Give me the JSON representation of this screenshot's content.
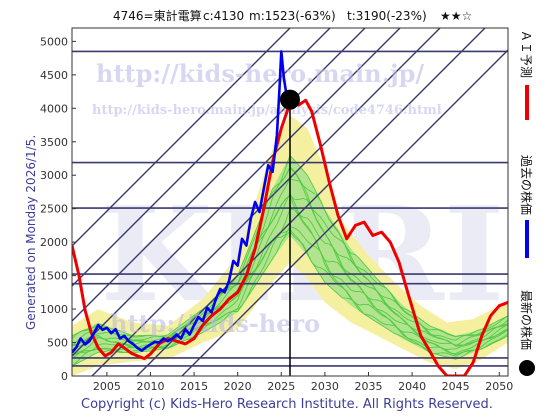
{
  "header": {
    "code_name": "4746=東計電算",
    "current": "c:4130",
    "min": "m:1523(-63%)",
    "target": "t:3190(-23%)",
    "stars": "★★☆"
  },
  "side_label": "Generated on Monday 2026/1/5.",
  "footer": "Copyright (c) Kids-Hero Research Institute. All Rights Reserved.",
  "watermarks": {
    "url1": "http://kids-hero.main.jp/",
    "url2": "http://kids-hero.main.jp/analysis/code4746.html",
    "url3": "http://kids-hero",
    "big": "KHRI"
  },
  "legend": {
    "forecast": "ＡＩ予測",
    "past": "過去の株価",
    "latest": "最新の株価"
  },
  "colors": {
    "past": "#0000ee",
    "forecast": "#ee0000",
    "latest": "#000000",
    "envelope_green": "#55cc44",
    "envelope_yellow": "#f5f0a0",
    "lines": "#3a3a70"
  },
  "chart_data": {
    "type": "line",
    "x_range": [
      2001,
      2051
    ],
    "y_range": [
      0,
      5200
    ],
    "x_ticks": [
      2005,
      2010,
      2015,
      2020,
      2025,
      2030,
      2035,
      2040,
      2045,
      2050
    ],
    "y_ticks": [
      0,
      500,
      1000,
      1500,
      2000,
      2500,
      3000,
      3500,
      4000,
      4500,
      5000
    ],
    "grid": false,
    "latest_point": {
      "year": 2026.0,
      "value": 4130
    },
    "horizontal_levels": [
      4850,
      3190,
      2510,
      1523,
      1380,
      270,
      150
    ],
    "past_series": [
      [
        2001.0,
        350
      ],
      [
        2001.5,
        430
      ],
      [
        2002.0,
        560
      ],
      [
        2002.5,
        470
      ],
      [
        2003.0,
        520
      ],
      [
        2003.5,
        640
      ],
      [
        2004.0,
        760
      ],
      [
        2004.5,
        690
      ],
      [
        2005.0,
        720
      ],
      [
        2005.5,
        640
      ],
      [
        2006.0,
        700
      ],
      [
        2006.5,
        560
      ],
      [
        2007.0,
        600
      ],
      [
        2007.5,
        520
      ],
      [
        2008.0,
        480
      ],
      [
        2008.5,
        420
      ],
      [
        2009.0,
        380
      ],
      [
        2009.5,
        430
      ],
      [
        2010.0,
        470
      ],
      [
        2010.5,
        510
      ],
      [
        2011.0,
        500
      ],
      [
        2011.5,
        560
      ],
      [
        2012.0,
        520
      ],
      [
        2012.5,
        560
      ],
      [
        2013.0,
        620
      ],
      [
        2013.5,
        560
      ],
      [
        2014.0,
        700
      ],
      [
        2014.5,
        620
      ],
      [
        2015.0,
        760
      ],
      [
        2015.5,
        880
      ],
      [
        2016.0,
        820
      ],
      [
        2016.5,
        1020
      ],
      [
        2017.0,
        950
      ],
      [
        2017.5,
        1150
      ],
      [
        2018.0,
        1300
      ],
      [
        2018.5,
        1250
      ],
      [
        2019.0,
        1420
      ],
      [
        2019.5,
        1720
      ],
      [
        2020.0,
        1650
      ],
      [
        2020.5,
        2050
      ],
      [
        2021.0,
        1950
      ],
      [
        2021.5,
        2350
      ],
      [
        2022.0,
        2600
      ],
      [
        2022.5,
        2450
      ],
      [
        2023.0,
        2800
      ],
      [
        2023.5,
        3150
      ],
      [
        2024.0,
        3050
      ],
      [
        2024.5,
        3600
      ],
      [
        2024.8,
        4300
      ],
      [
        2025.0,
        4850
      ],
      [
        2025.3,
        4450
      ],
      [
        2025.6,
        4200
      ],
      [
        2026.0,
        4130
      ]
    ],
    "forecast_series": [
      [
        2001.0,
        1950
      ],
      [
        2001.8,
        1500
      ],
      [
        2002.5,
        980
      ],
      [
        2003.2,
        650
      ],
      [
        2004.0,
        420
      ],
      [
        2004.8,
        300
      ],
      [
        2005.5,
        350
      ],
      [
        2006.3,
        480
      ],
      [
        2007.0,
        420
      ],
      [
        2007.8,
        340
      ],
      [
        2008.5,
        300
      ],
      [
        2009.3,
        260
      ],
      [
        2010.0,
        330
      ],
      [
        2011.0,
        480
      ],
      [
        2012.0,
        560
      ],
      [
        2013.0,
        520
      ],
      [
        2014.0,
        480
      ],
      [
        2015.0,
        560
      ],
      [
        2016.0,
        760
      ],
      [
        2017.0,
        900
      ],
      [
        2018.0,
        1000
      ],
      [
        2019.0,
        1150
      ],
      [
        2020.0,
        1250
      ],
      [
        2021.0,
        1500
      ],
      [
        2022.0,
        1900
      ],
      [
        2023.0,
        2500
      ],
      [
        2024.0,
        3200
      ],
      [
        2025.0,
        3700
      ],
      [
        2026.0,
        4080
      ],
      [
        2027.0,
        4050
      ],
      [
        2027.8,
        4120
      ],
      [
        2028.5,
        3950
      ],
      [
        2029.5,
        3450
      ],
      [
        2030.5,
        2900
      ],
      [
        2031.5,
        2400
      ],
      [
        2032.5,
        2050
      ],
      [
        2033.5,
        2250
      ],
      [
        2034.5,
        2300
      ],
      [
        2035.5,
        2100
      ],
      [
        2036.5,
        2150
      ],
      [
        2037.5,
        2000
      ],
      [
        2038.5,
        1700
      ],
      [
        2039.5,
        1250
      ],
      [
        2040.3,
        900
      ],
      [
        2041.0,
        600
      ],
      [
        2042.0,
        380
      ],
      [
        2043.0,
        150
      ],
      [
        2044.0,
        0
      ],
      [
        2045.0,
        0
      ],
      [
        2046.0,
        0
      ],
      [
        2047.0,
        200
      ],
      [
        2048.0,
        600
      ],
      [
        2049.0,
        900
      ],
      [
        2050.0,
        1050
      ],
      [
        2051.0,
        1100
      ]
    ],
    "envelope_outer_upper": [
      [
        2001,
        750
      ],
      [
        2004,
        1000
      ],
      [
        2008,
        800
      ],
      [
        2012,
        750
      ],
      [
        2016,
        1150
      ],
      [
        2020,
        1800
      ],
      [
        2024,
        3400
      ],
      [
        2026,
        3900
      ],
      [
        2028,
        3700
      ],
      [
        2030,
        3100
      ],
      [
        2032,
        2300
      ],
      [
        2035,
        1800
      ],
      [
        2038,
        1400
      ],
      [
        2041,
        1050
      ],
      [
        2044,
        800
      ],
      [
        2047,
        850
      ],
      [
        2050,
        1050
      ],
      [
        2051,
        1100
      ]
    ],
    "envelope_outer_lower": [
      [
        2001,
        0
      ],
      [
        2004,
        150
      ],
      [
        2008,
        220
      ],
      [
        2012,
        250
      ],
      [
        2016,
        500
      ],
      [
        2020,
        700
      ],
      [
        2024,
        1400
      ],
      [
        2026,
        1700
      ],
      [
        2028,
        1450
      ],
      [
        2030,
        1100
      ],
      [
        2033,
        800
      ],
      [
        2036,
        600
      ],
      [
        2039,
        400
      ],
      [
        2042,
        200
      ],
      [
        2045,
        100
      ],
      [
        2048,
        250
      ],
      [
        2051,
        500
      ]
    ],
    "envelope_inner_upper": [
      [
        2001,
        600
      ],
      [
        2004,
        800
      ],
      [
        2008,
        600
      ],
      [
        2012,
        620
      ],
      [
        2016,
        1000
      ],
      [
        2020,
        1500
      ],
      [
        2024,
        2800
      ],
      [
        2026,
        3300
      ],
      [
        2028,
        3000
      ],
      [
        2030,
        2500
      ],
      [
        2033,
        1900
      ],
      [
        2036,
        1450
      ],
      [
        2039,
        1050
      ],
      [
        2042,
        750
      ],
      [
        2045,
        600
      ],
      [
        2048,
        700
      ],
      [
        2051,
        900
      ]
    ],
    "envelope_inner_lower": [
      [
        2001,
        150
      ],
      [
        2004,
        350
      ],
      [
        2008,
        350
      ],
      [
        2012,
        400
      ],
      [
        2016,
        650
      ],
      [
        2020,
        950
      ],
      [
        2024,
        1750
      ],
      [
        2026,
        2100
      ],
      [
        2028,
        1800
      ],
      [
        2030,
        1400
      ],
      [
        2033,
        1050
      ],
      [
        2036,
        800
      ],
      [
        2039,
        550
      ],
      [
        2042,
        350
      ],
      [
        2045,
        250
      ],
      [
        2048,
        400
      ],
      [
        2051,
        600
      ]
    ]
  }
}
